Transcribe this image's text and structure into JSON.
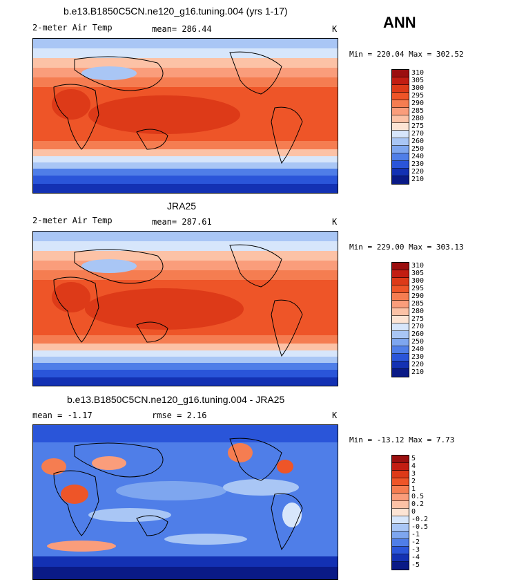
{
  "season": "ANN",
  "units": "K",
  "panels": [
    {
      "title": "b.e13.B1850C5CN.ne120_g16.tuning.004 (yrs 1-17)",
      "variable": "2-meter Air Temp",
      "stat_text": "mean=  286.44",
      "minmax": "Min = 220.04 Max = 302.52"
    },
    {
      "title": "JRA25",
      "variable": "2-meter Air Temp",
      "stat_text": "mean=  287.61",
      "minmax": "Min = 229.00 Max = 303.13"
    },
    {
      "title": "b.e13.B1850C5CN.ne120_g16.tuning.004 - JRA25",
      "variable": "",
      "stat_text": "mean =   -1.17",
      "stat2_text": "rmse =    2.16",
      "minmax": "Min = -13.12 Max =   7.73"
    }
  ],
  "chart_data": [
    {
      "type": "heatmap",
      "title": "b.e13.B1850C5CN.ne120_g16.tuning.004 (yrs 1-17)",
      "field": "2-meter Air Temp",
      "units": "K",
      "mean": 286.44,
      "min": 220.04,
      "max": 302.52,
      "colorbar_levels": [
        "310",
        "305",
        "300",
        "295",
        "290",
        "285",
        "280",
        "275",
        "270",
        "260",
        "250",
        "240",
        "230",
        "220",
        "210"
      ],
      "colorbar_colors": [
        "#9b0f0f",
        "#c21d12",
        "#dd3a18",
        "#ee5528",
        "#f57d51",
        "#fa9d7b",
        "#fcc2a6",
        "#fde4d4",
        "#d7e6fb",
        "#a9c6f5",
        "#7ea6ef",
        "#4f7ee8",
        "#2a55d9",
        "#1331b3",
        "#0a1a86"
      ]
    },
    {
      "type": "heatmap",
      "title": "JRA25",
      "field": "2-meter Air Temp",
      "units": "K",
      "mean": 287.61,
      "min": 229.0,
      "max": 303.13,
      "colorbar_levels": [
        "310",
        "305",
        "300",
        "295",
        "290",
        "285",
        "280",
        "275",
        "270",
        "260",
        "250",
        "240",
        "230",
        "220",
        "210"
      ],
      "colorbar_colors": [
        "#9b0f0f",
        "#c21d12",
        "#dd3a18",
        "#ee5528",
        "#f57d51",
        "#fa9d7b",
        "#fcc2a6",
        "#fde4d4",
        "#d7e6fb",
        "#a9c6f5",
        "#7ea6ef",
        "#4f7ee8",
        "#2a55d9",
        "#1331b3",
        "#0a1a86"
      ]
    },
    {
      "type": "heatmap",
      "title": "b.e13.B1850C5CN.ne120_g16.tuning.004 - JRA25",
      "field": "difference",
      "units": "K",
      "mean": -1.17,
      "rmse": 2.16,
      "min": -13.12,
      "max": 7.73,
      "colorbar_levels": [
        "5",
        "4",
        "3",
        "2",
        "1",
        "0.5",
        "0.2",
        "0",
        "-0.2",
        "-0.5",
        "-1",
        "-2",
        "-3",
        "-4",
        "-5"
      ],
      "colorbar_colors": [
        "#9b0f0f",
        "#c21d12",
        "#dd3a18",
        "#ee5528",
        "#f57d51",
        "#fa9d7b",
        "#fcc2a6",
        "#fde4d4",
        "#d7e6fb",
        "#a9c6f5",
        "#7ea6ef",
        "#4f7ee8",
        "#2a55d9",
        "#1331b3",
        "#0a1a86"
      ]
    }
  ]
}
